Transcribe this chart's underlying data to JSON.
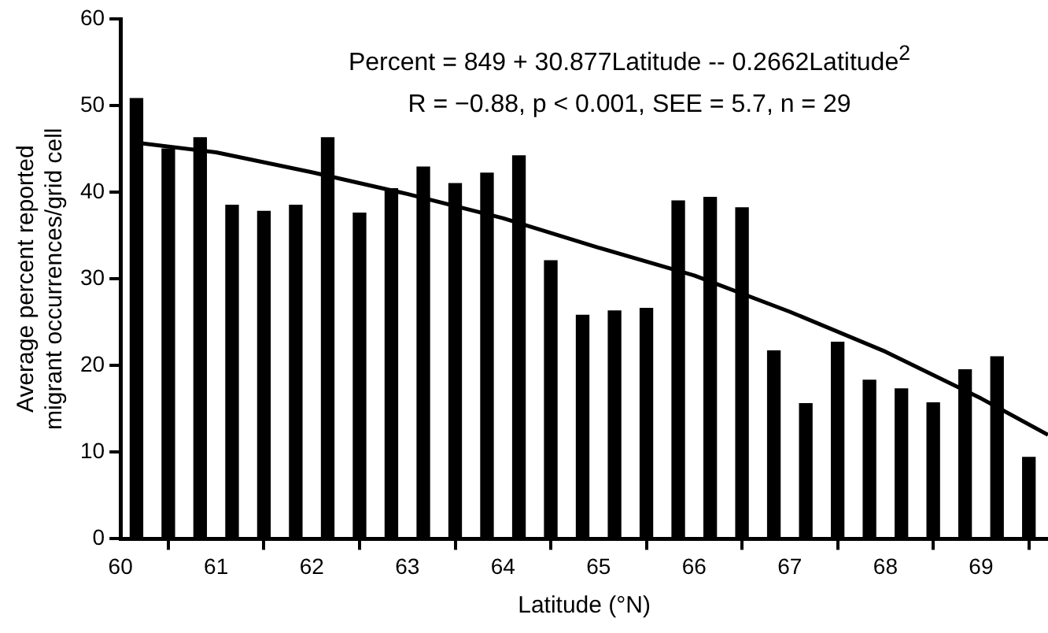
{
  "chart_data": {
    "type": "bar",
    "xlabel": "Latitude (°N)",
    "ylabel": "Average percent reported migrant occurrences/grid cell",
    "annotations": [
      "Percent = 849 + 30.877Latitude -- 0.2662Latitude$^{2}$",
      "R = −0.88, p < 0.001, SEE = 5.7, n = 29"
    ],
    "x": [
      60.167,
      60.5,
      60.833,
      61.167,
      61.5,
      61.833,
      62.167,
      62.5,
      62.833,
      63.167,
      63.5,
      63.833,
      64.167,
      64.5,
      64.833,
      65.167,
      65.5,
      65.833,
      66.167,
      66.5,
      66.833,
      67.167,
      67.5,
      67.833,
      68.167,
      68.5,
      68.833,
      69.167,
      69.5
    ],
    "series": [
      {
        "color": "#000000",
        "values": [
          50.8,
          45,
          46.3,
          38.5,
          37.8,
          38.5,
          46.3,
          37.6,
          40.4,
          42.9,
          41,
          42.2,
          44.2,
          32.1,
          25.8,
          26.3,
          26.6,
          39,
          39.4,
          38.2,
          21.7,
          15.6,
          22.7,
          18.3,
          17.3,
          15.7,
          19.5,
          21,
          9.4
        ]
      },
      {
        "type": "line",
        "color": "#000000",
        "x": [
          60.1,
          61,
          62,
          63,
          64,
          65,
          66,
          67,
          68,
          69,
          69.7
        ],
        "values": [
          45.8,
          44.6,
          42.3,
          39.8,
          37,
          33.6,
          30.4,
          26.2,
          21.6,
          16.2,
          12
        ]
      }
    ],
    "xlim": [
      60,
      69.7
    ],
    "xticks": [
      60,
      61,
      62,
      63,
      64,
      65,
      66,
      67,
      68,
      69
    ],
    "ylim": [
      0,
      60
    ],
    "yticks": [
      0,
      10,
      20,
      30,
      40,
      50,
      60
    ],
    "legend": false
  }
}
